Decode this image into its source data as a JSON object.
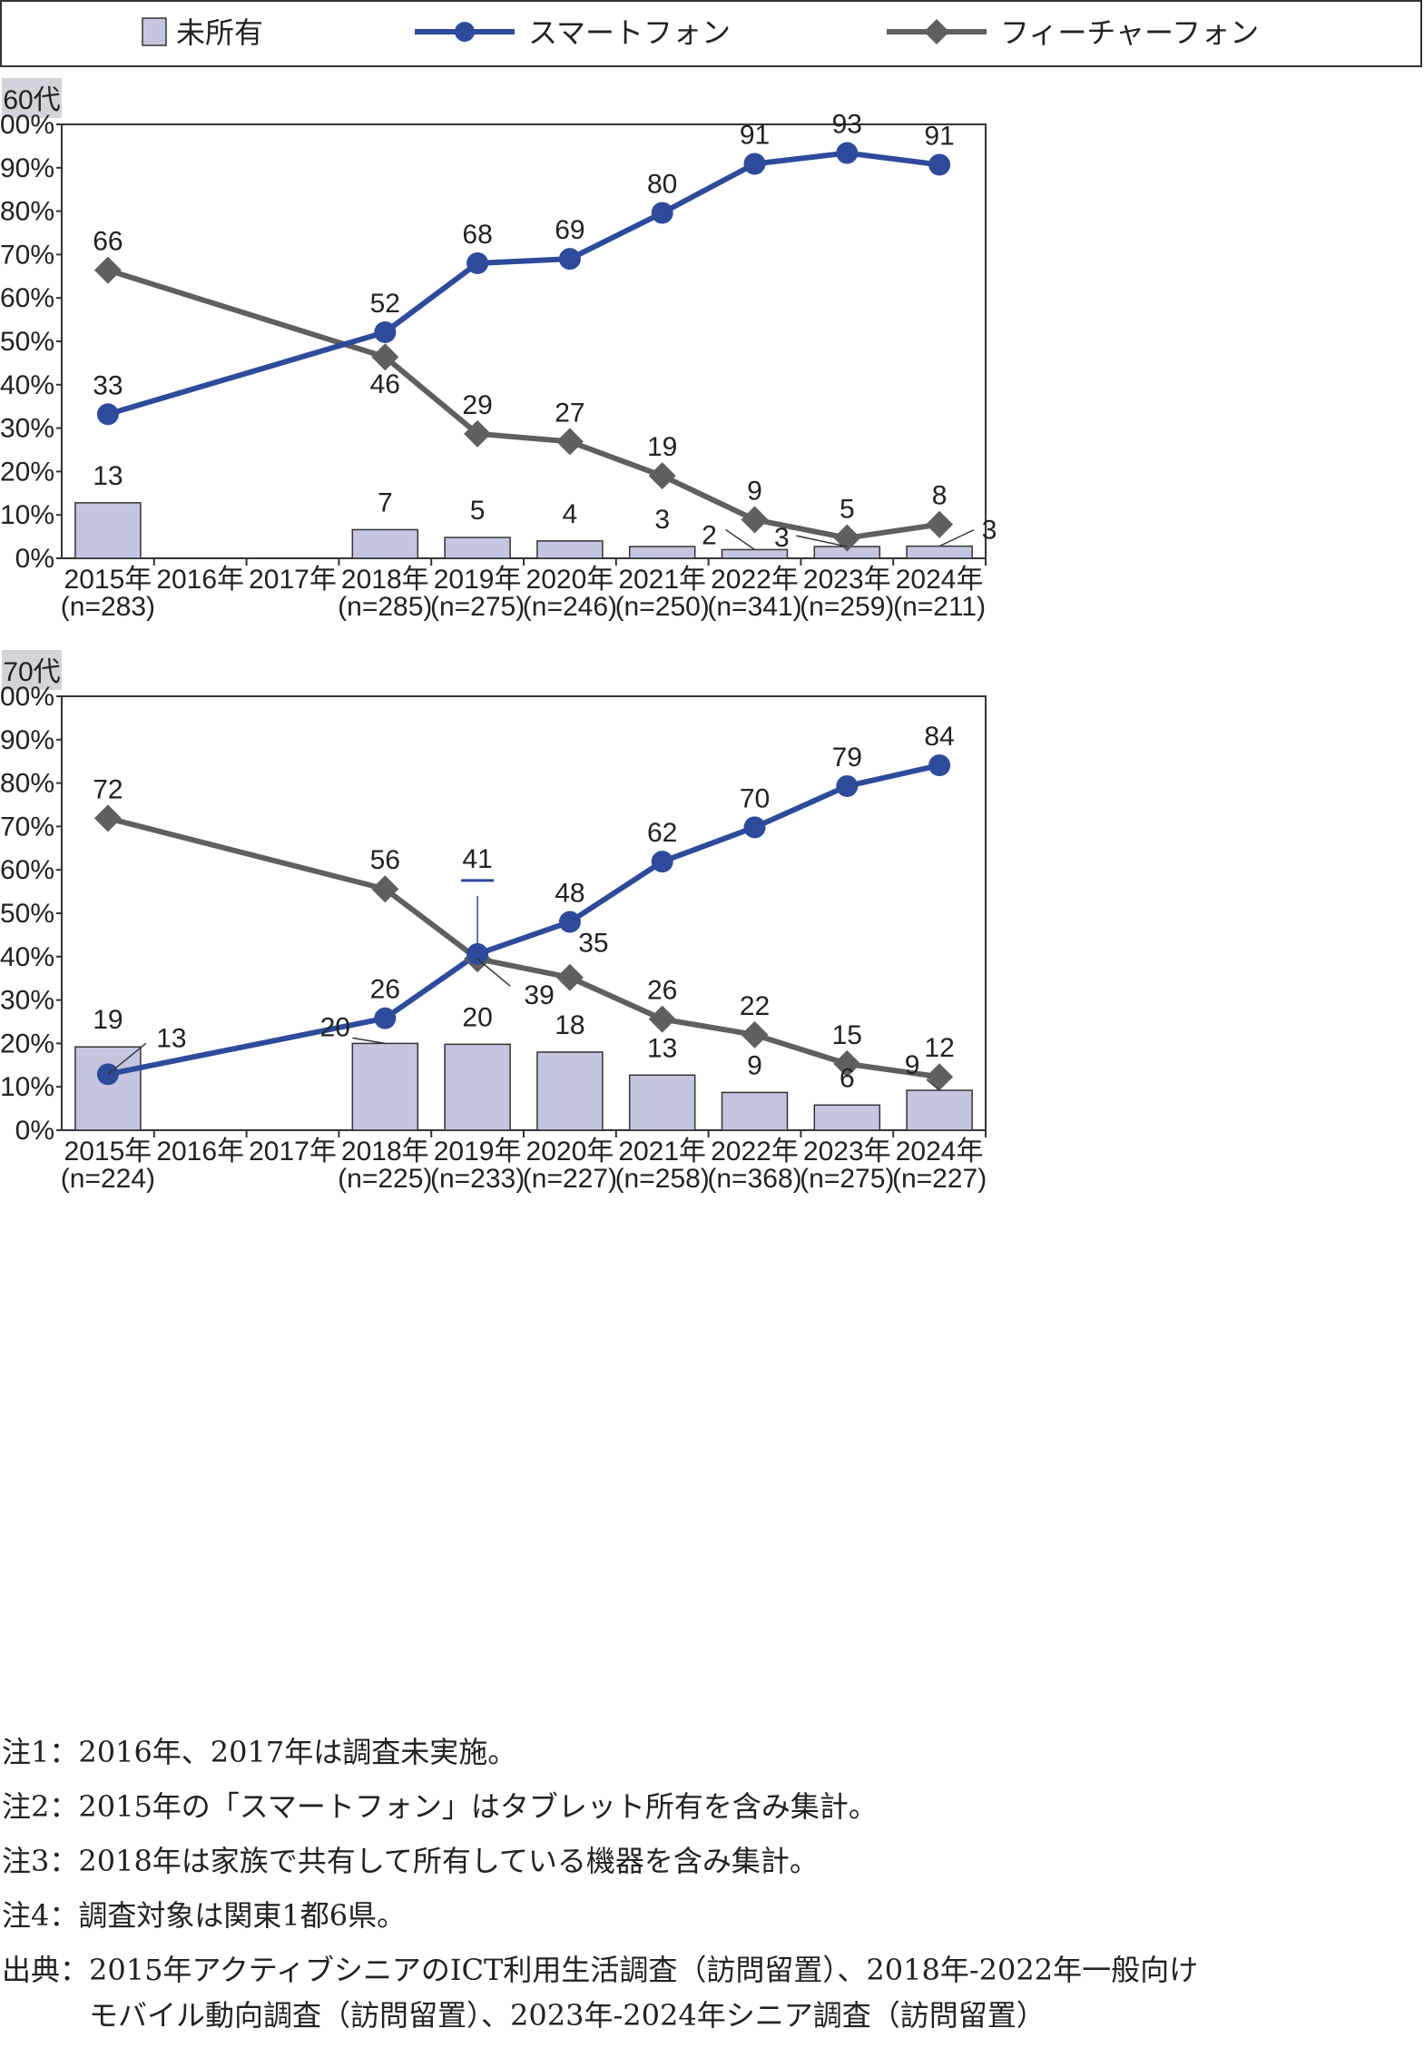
{
  "legend": {
    "items": [
      {
        "label": "未所有",
        "kind": "bar",
        "color": "#c5c5e2"
      },
      {
        "label": "スマートフォン",
        "kind": "circle-line",
        "color": "#2e4a9a"
      },
      {
        "label": "フィーチャーフォン",
        "kind": "diamond-line",
        "color": "#5f5f5f"
      }
    ]
  },
  "chart_data": [
    {
      "type": "bar",
      "panel_title": "60代",
      "y_axis": {
        "min": 0,
        "max": 100,
        "step": 10,
        "unit": "%"
      },
      "categories": [
        {
          "year": "2015年",
          "n": "(n=283)"
        },
        {
          "year": "2016年",
          "n": ""
        },
        {
          "year": "2017年",
          "n": ""
        },
        {
          "year": "2018年",
          "n": "(n=285)"
        },
        {
          "year": "2019年",
          "n": "(n=275)"
        },
        {
          "year": "2020年",
          "n": "(n=246)"
        },
        {
          "year": "2021年",
          "n": "(n=250)"
        },
        {
          "year": "2022年",
          "n": "(n=341)"
        },
        {
          "year": "2023年",
          "n": "(n=259)"
        },
        {
          "year": "2024年",
          "n": "(n=211)"
        }
      ],
      "series": [
        {
          "name": "未所有",
          "type": "bar",
          "color": "#c5c5e2",
          "values": [
            12.8,
            null,
            null,
            6.6,
            4.8,
            4.0,
            2.7,
            2.0,
            2.7,
            2.8
          ],
          "labels": [
            "13",
            null,
            null,
            "7",
            "5",
            "4",
            "3",
            "2",
            "3",
            "3"
          ]
        },
        {
          "name": "スマートフォン",
          "type": "line",
          "marker": "circle",
          "color": "#2e4a9a",
          "values": [
            33.2,
            null,
            null,
            52.1,
            68.0,
            69.0,
            79.6,
            90.9,
            93.4,
            90.7
          ],
          "labels": [
            "33",
            null,
            null,
            "52",
            "68",
            "69",
            "80",
            "91",
            "93",
            "91"
          ]
        },
        {
          "name": "フィーチャーフォン",
          "type": "line",
          "marker": "diamond",
          "color": "#5f5f5f",
          "values": [
            66.4,
            null,
            null,
            46.4,
            28.7,
            26.9,
            19.0,
            8.9,
            4.7,
            7.8
          ],
          "labels": [
            "66",
            null,
            null,
            "46",
            "29",
            "27",
            "19",
            "9",
            "5",
            "8"
          ]
        }
      ]
    },
    {
      "type": "bar",
      "panel_title": "70代",
      "y_axis": {
        "min": 0,
        "max": 100,
        "step": 10,
        "unit": "%"
      },
      "categories": [
        {
          "year": "2015年",
          "n": "(n=224)"
        },
        {
          "year": "2016年",
          "n": ""
        },
        {
          "year": "2017年",
          "n": ""
        },
        {
          "year": "2018年",
          "n": "(n=225)"
        },
        {
          "year": "2019年",
          "n": "(n=233)"
        },
        {
          "year": "2020年",
          "n": "(n=227)"
        },
        {
          "year": "2021年",
          "n": "(n=258)"
        },
        {
          "year": "2022年",
          "n": "(n=368)"
        },
        {
          "year": "2023年",
          "n": "(n=275)"
        },
        {
          "year": "2024年",
          "n": "(n=227)"
        }
      ],
      "series": [
        {
          "name": "未所有",
          "type": "bar",
          "color": "#c5c5e2",
          "values": [
            19.2,
            null,
            null,
            20.0,
            19.8,
            18.0,
            12.7,
            8.7,
            5.8,
            9.2
          ],
          "labels": [
            "19",
            null,
            null,
            "20",
            "20",
            "18",
            "13",
            "9",
            "6",
            "9"
          ]
        },
        {
          "name": "スマートフォン",
          "type": "line",
          "marker": "circle",
          "color": "#2e4a9a",
          "values": [
            12.9,
            null,
            null,
            25.8,
            40.6,
            48.0,
            61.9,
            69.8,
            79.3,
            84.1
          ],
          "labels": [
            "13",
            null,
            null,
            "26",
            "41",
            "48",
            "62",
            "70",
            "79",
            "84"
          ]
        },
        {
          "name": "フィーチャーフォン",
          "type": "line",
          "marker": "diamond",
          "color": "#5f5f5f",
          "values": [
            71.9,
            null,
            null,
            55.6,
            39.5,
            35.2,
            25.6,
            22.0,
            15.3,
            12.3
          ],
          "labels": [
            "72",
            null,
            null,
            "56",
            "39",
            "35",
            "26",
            "22",
            "15",
            "12"
          ]
        }
      ]
    }
  ],
  "notes": [
    "注1：2016年、2017年は調査未実施。",
    "注2：2015年の「スマートフォン」はタブレット所有を含み集計。",
    "注3：2018年は家族で共有して所有している機器を含み集計。",
    "注4：調査対象は関東1都6県。",
    "出典：2015年アクティブシニアのICT利用生活調査（訪問留置）、2018年-2022年一般向け",
    "　　　モバイル動向調査（訪問留置）、2023年-2024年シニア調査（訪問留置）"
  ]
}
